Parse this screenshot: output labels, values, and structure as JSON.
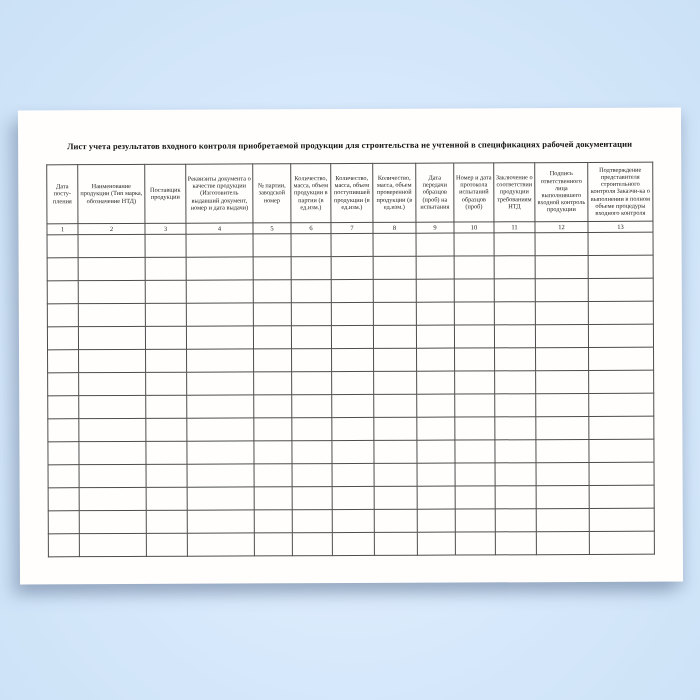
{
  "document": {
    "title": "Лист учета результатов входного контроля приобретаемой продукции для строительства не учтенной в спецификациях рабочей документации"
  },
  "table": {
    "columns": [
      {
        "num": "1",
        "label": "Дата посту-пления"
      },
      {
        "num": "2",
        "label": "Наименование продукции (Тип марка, обозначение НТД)"
      },
      {
        "num": "3",
        "label": "Поставщик продукции"
      },
      {
        "num": "4",
        "label": "Реквизиты документа о качестве продукции (Изготовитель выдавший документ, номер и дата выдачи)"
      },
      {
        "num": "5",
        "label": "№ партии, заводской номер"
      },
      {
        "num": "6",
        "label": "Количество, масса, объем продукции в партии (в ед.изм.)"
      },
      {
        "num": "7",
        "label": "Количество, масса, объем поступившей продукции (в ед.изм.)"
      },
      {
        "num": "8",
        "label": "Количество, масса, объем проверенной продукции (в ед.изм.)"
      },
      {
        "num": "9",
        "label": "Дата передачи образцов (проб) на испытания"
      },
      {
        "num": "10",
        "label": "Номер и дата протокола испытаний образцов (проб)"
      },
      {
        "num": "11",
        "label": "Заключение о соответствии продукции требованиям НТД"
      },
      {
        "num": "12",
        "label": "Подпись ответственного лица выполнившего входной контроль продукции"
      },
      {
        "num": "13",
        "label": "Подтверждение представителя строительного контроля Заказчи-ка о выполнении в полном объеме процедуры входного контроля"
      }
    ],
    "empty_row_count": 14
  },
  "colors": {
    "backdrop": "#d6e8fb",
    "sheet": "#fffefd",
    "table_border": "#4d4d4d",
    "text": "#1b1b1b"
  }
}
